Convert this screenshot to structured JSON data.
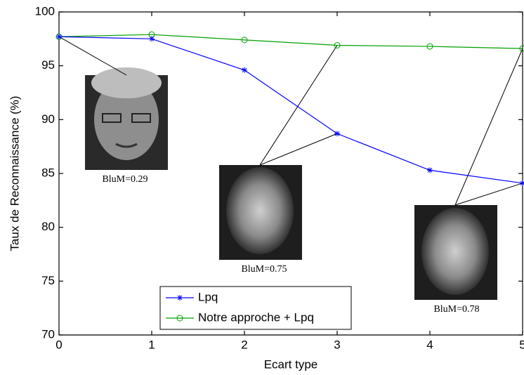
{
  "chart_data": {
    "type": "line",
    "x_label": "Ecart type",
    "y_label": "Taux de Reconnaissance (%)",
    "x": [
      0,
      1,
      2,
      3,
      4,
      5
    ],
    "series": [
      {
        "name": "Lpq",
        "color": "#0000ff",
        "marker": "asterisk",
        "values": [
          97.7,
          97.5,
          94.6,
          88.7,
          85.3,
          84.1
        ]
      },
      {
        "name": "Notre approche + Lpq",
        "color": "#00a000",
        "marker": "circle",
        "values": [
          97.7,
          97.9,
          97.4,
          96.9,
          96.8,
          96.6
        ]
      }
    ],
    "xlim": [
      0,
      5
    ],
    "ylim": [
      70,
      100
    ],
    "xticks": [
      0,
      1,
      2,
      3,
      4,
      5
    ],
    "yticks": [
      70,
      75,
      80,
      85,
      90,
      95,
      100
    ],
    "grid": false,
    "legend": "lower center",
    "annotations": [
      "BluM=0.29",
      "BluM=0.75",
      "BluM=0.78"
    ]
  }
}
